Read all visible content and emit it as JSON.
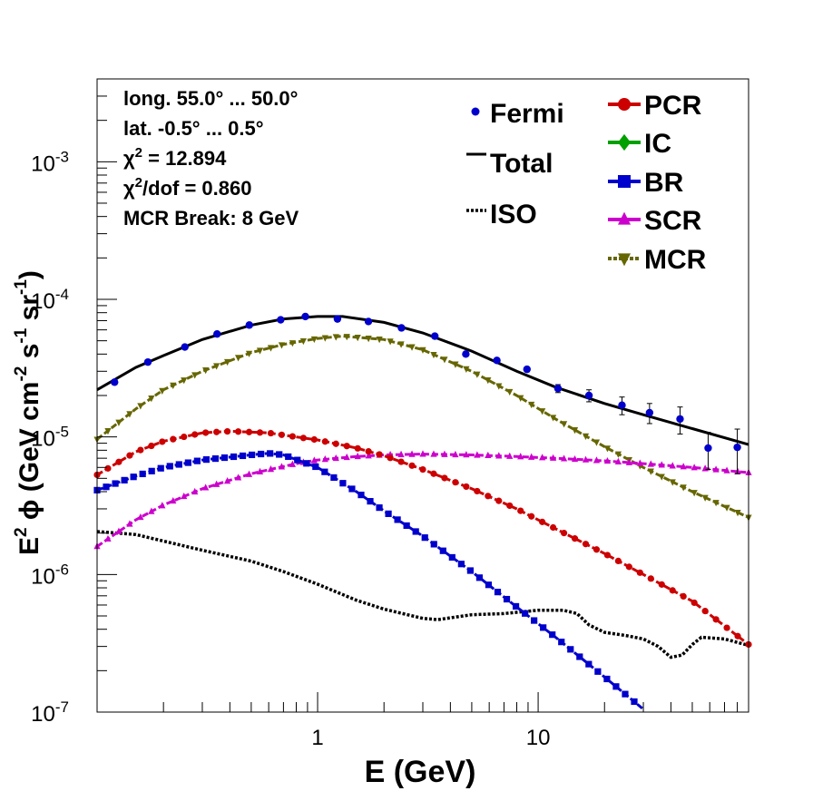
{
  "chart_data": {
    "type": "line",
    "xscale": "log",
    "yscale": "log",
    "xlim": [
      0.1,
      90
    ],
    "ylim": [
      1e-07,
      0.004
    ],
    "xlabel": "E (GeV)",
    "ylabel": {
      "pre": "E",
      "sup1": "2",
      "mid": " ϕ (GeV cm",
      "sup2": "-2",
      "mid2": " s",
      "sup3": "-1",
      "mid3": " sr",
      "sup4": "-1",
      "post": ")"
    },
    "x_ticks": [
      {
        "value": 1,
        "label": "1"
      },
      {
        "value": 10,
        "label": "10"
      }
    ],
    "y_ticks": [
      {
        "value": 1e-07,
        "base": "10",
        "exp": "-7"
      },
      {
        "value": 1e-06,
        "base": "10",
        "exp": "-6"
      },
      {
        "value": 1e-05,
        "base": "10",
        "exp": "-5"
      },
      {
        "value": 0.0001,
        "base": "10",
        "exp": "-4"
      },
      {
        "value": 0.001,
        "base": "10",
        "exp": "-3"
      }
    ],
    "info_lines": [
      {
        "text": "long. 55.0° ... 50.0°"
      },
      {
        "text": "lat. -0.5° ... 0.5°"
      },
      {
        "pre": "χ",
        "sup": "2",
        "post": " = 12.894"
      },
      {
        "pre": "χ",
        "sup": "2",
        "post": "/dof = 0.860"
      },
      {
        "text": "MCR Break:  8 GeV"
      }
    ],
    "legend": {
      "left": [
        {
          "label": "Fermi",
          "key": "fermi"
        },
        {
          "label": "Total",
          "key": "total"
        },
        {
          "label": "ISO",
          "key": "iso"
        }
      ],
      "right": [
        {
          "label": "PCR",
          "key": "pcr"
        },
        {
          "label": "IC",
          "key": "ic"
        },
        {
          "label": "BR",
          "key": "br"
        },
        {
          "label": "SCR",
          "key": "scr"
        },
        {
          "label": "MCR",
          "key": "mcr"
        }
      ]
    },
    "colors": {
      "fermi": "#0000cc",
      "total": "#000000",
      "iso": "#000000",
      "pcr": "#cc0000",
      "ic": "#00a000",
      "br": "#0000cc",
      "scr": "#cc00cc",
      "mcr": "#666600"
    },
    "fermi": {
      "x": [
        0.12,
        0.17,
        0.25,
        0.35,
        0.49,
        0.68,
        0.88,
        1.23,
        1.7,
        2.4,
        3.4,
        4.7,
        6.5,
        8.9,
        12.3,
        17,
        24,
        32,
        44,
        59,
        80
      ],
      "y": [
        2.5e-05,
        3.5e-05,
        4.5e-05,
        5.6e-05,
        6.5e-05,
        7.1e-05,
        7.5e-05,
        7.2e-05,
        6.9e-05,
        6.2e-05,
        5.4e-05,
        4e-05,
        3.6e-05,
        3.1e-05,
        2.25e-05,
        2e-05,
        1.7e-05,
        1.5e-05,
        1.35e-05,
        8.3e-06,
        8.4e-06
      ],
      "err": [
        1e-06,
        1e-06,
        1e-06,
        1.2e-06,
        1.3e-06,
        1.4e-06,
        1.5e-06,
        1.5e-06,
        1.4e-06,
        1.3e-06,
        1.2e-06,
        1e-06,
        1e-06,
        1.2e-06,
        1.5e-06,
        2e-06,
        2.5e-06,
        2.5e-06,
        3e-06,
        2.5e-06,
        3e-06
      ]
    },
    "series": {
      "total": {
        "x": [
          0.1,
          0.15,
          0.2,
          0.3,
          0.5,
          0.7,
          1.0,
          1.3,
          2.0,
          3.0,
          5.0,
          8.0,
          12,
          20,
          30,
          50,
          90
        ],
        "y": [
          2.2e-05,
          3.2e-05,
          3.9e-05,
          5.1e-05,
          6.5e-05,
          7.2e-05,
          7.5e-05,
          7.5e-05,
          6.8e-05,
          5.7e-05,
          4.2e-05,
          3e-05,
          2.3e-05,
          1.75e-05,
          1.45e-05,
          1.15e-05,
          8.8e-06
        ]
      },
      "mcr": {
        "x": [
          0.1,
          0.15,
          0.2,
          0.3,
          0.5,
          0.7,
          1.0,
          1.3,
          2.0,
          3.0,
          5.0,
          8.0,
          12,
          20,
          30,
          50,
          90
        ],
        "y": [
          9.6e-06,
          1.6e-05,
          2.2e-05,
          3e-05,
          4.1e-05,
          4.7e-05,
          5.2e-05,
          5.4e-05,
          5.1e-05,
          4.3e-05,
          3e-05,
          2e-05,
          1.35e-05,
          8.5e-06,
          6e-06,
          4e-06,
          2.6e-06
        ]
      },
      "pcr": {
        "x": [
          0.1,
          0.15,
          0.2,
          0.3,
          0.4,
          0.6,
          0.8,
          1.0,
          1.5,
          2.0,
          3.0,
          5.0,
          8.0,
          12,
          20,
          30,
          50,
          90
        ],
        "y": [
          5.3e-06,
          7.8e-06,
          9.3e-06,
          1.07e-05,
          1.1e-05,
          1.07e-05,
          1e-05,
          9.5e-06,
          8.3e-06,
          7.3e-06,
          5.8e-06,
          4.2e-06,
          3e-06,
          2.15e-06,
          1.42e-06,
          1e-06,
          6.4e-07,
          3.1e-07
        ]
      },
      "br": {
        "x": [
          0.1,
          0.15,
          0.2,
          0.3,
          0.5,
          0.6,
          0.7,
          1.0,
          1.5,
          2.0,
          3.0,
          5.0,
          8.0,
          12,
          20,
          30
        ],
        "y": [
          4.1e-06,
          5.2e-06,
          6e-06,
          6.8e-06,
          7.4e-06,
          7.6e-06,
          7.4e-06,
          6e-06,
          4e-06,
          2.9e-06,
          1.9e-06,
          1.05e-06,
          5.8e-07,
          3.5e-07,
          1.8e-07,
          1.05e-07
        ]
      },
      "scr": {
        "x": [
          0.1,
          0.15,
          0.2,
          0.3,
          0.5,
          0.8,
          1.0,
          1.5,
          2.0,
          3.0,
          5.0,
          8.0,
          12,
          20,
          30,
          50,
          90
        ],
        "y": [
          1.6e-06,
          2.5e-06,
          3.2e-06,
          4.2e-06,
          5.4e-06,
          6.4e-06,
          6.8e-06,
          7.2e-06,
          7.4e-06,
          7.5e-06,
          7.4e-06,
          7.2e-06,
          7e-06,
          6.7e-06,
          6.4e-06,
          6e-06,
          5.5e-06
        ]
      },
      "iso": {
        "x": [
          0.1,
          0.15,
          0.2,
          0.3,
          0.5,
          0.7,
          1.0,
          1.5,
          2.0,
          3.0,
          3.5,
          5.0,
          7.0,
          10,
          13,
          15,
          17,
          20,
          25,
          30,
          35,
          40,
          45,
          50,
          55,
          70,
          90
        ],
        "y": [
          2.05e-06,
          1.95e-06,
          1.75e-06,
          1.5e-06,
          1.25e-06,
          1.05e-06,
          8.5e-07,
          6.5e-07,
          5.6e-07,
          4.8e-07,
          4.7e-07,
          5.1e-07,
          5.2e-07,
          5.5e-07,
          5.5e-07,
          5.2e-07,
          4.3e-07,
          3.8e-07,
          3.6e-07,
          3.4e-07,
          3e-07,
          2.5e-07,
          2.6e-07,
          3.1e-07,
          3.5e-07,
          3.4e-07,
          3.05e-07
        ]
      }
    }
  }
}
